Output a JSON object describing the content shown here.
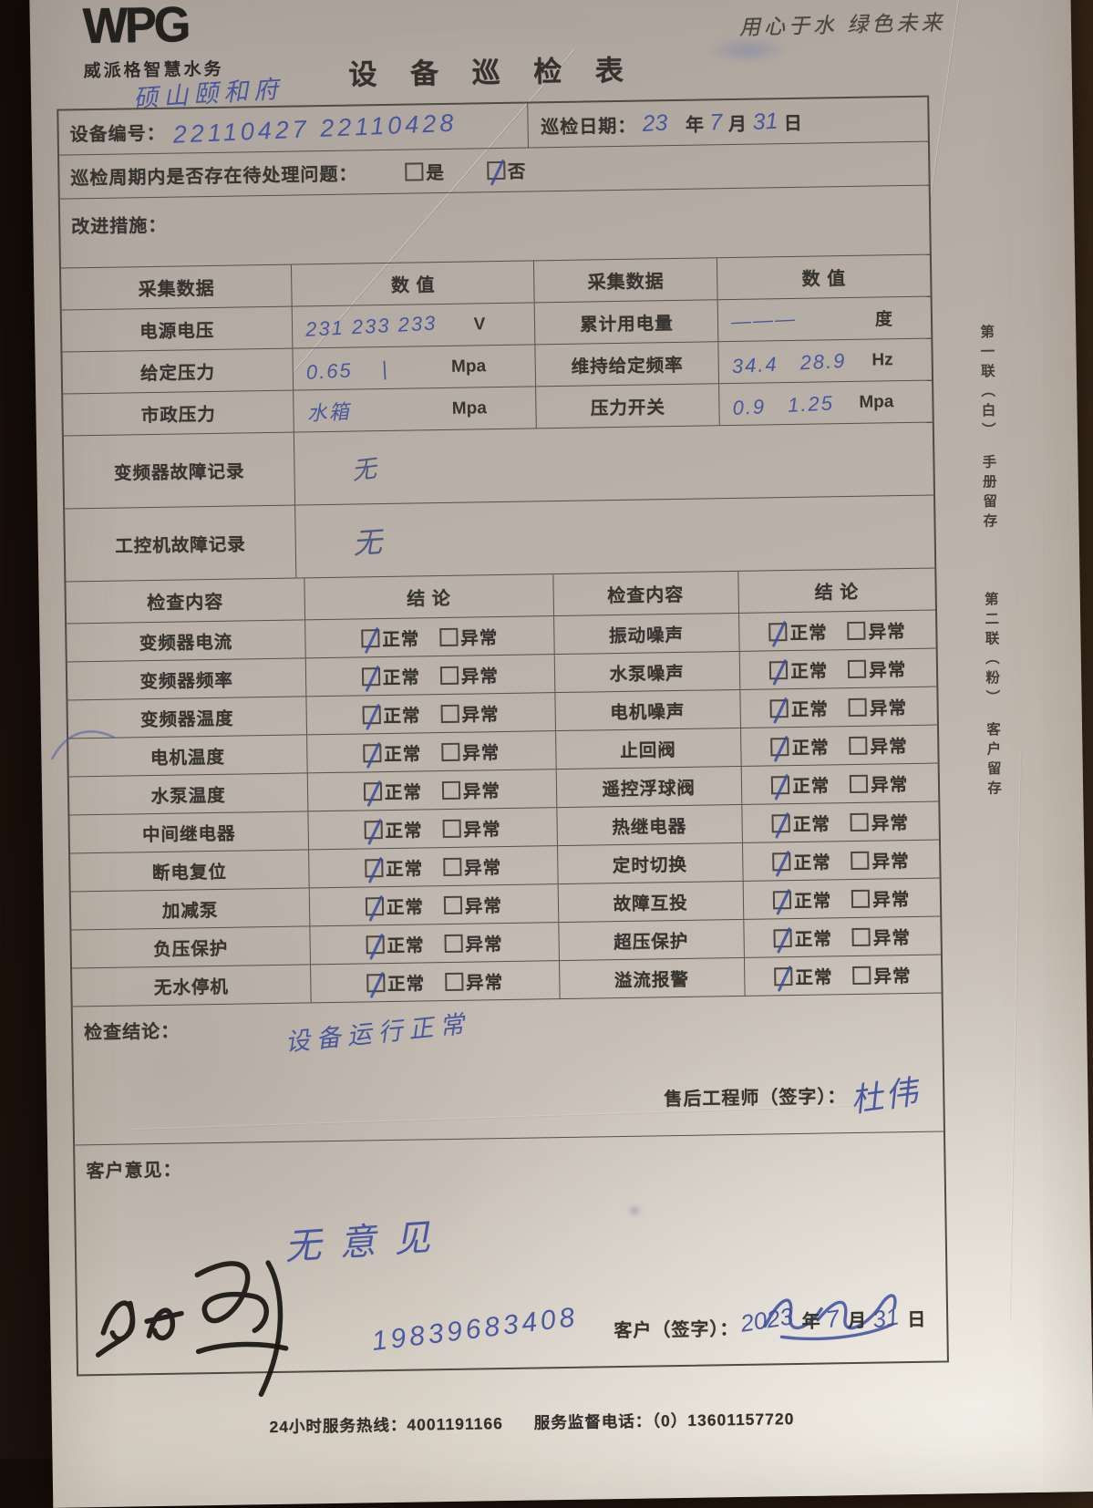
{
  "brand": {
    "logo_text": "WPG",
    "company_name": "威派格智慧水务",
    "slogan": "用心于水 绿色未来",
    "site_note_handwritten": "硕山颐和府"
  },
  "title": "设 备 巡 检 表",
  "header": {
    "device_no_label": "设备编号：",
    "device_no_value": "22110427  22110428",
    "inspect_date_label": "巡检日期：",
    "inspect_year_value": "23",
    "inspect_year_unit": "年",
    "inspect_month_value": "7",
    "inspect_month_unit": "月",
    "inspect_day_value": "31",
    "inspect_day_unit": "日"
  },
  "pending": {
    "question_label": "巡检周期内是否存在待处理问题：",
    "yes_label": "是",
    "no_label": "否"
  },
  "improve_label": "改进措施：",
  "collect": {
    "col_headers": [
      "采集数据",
      "数  值",
      "采集数据",
      "数  值"
    ],
    "rows": [
      {
        "label1": "电源电压",
        "value1": "231 233 233",
        "unit1": "V",
        "label2": "累计用电量",
        "value2": "———",
        "unit2": "度"
      },
      {
        "label1": "给定压力",
        "value1": "0.65　 |",
        "unit1": "Mpa",
        "label2": "维持给定频率",
        "value2": "34.4　28.9",
        "unit2": "Hz"
      },
      {
        "label1": "市政压力",
        "value1": "水箱",
        "unit1": "Mpa",
        "label2": "压力开关",
        "value2": "0.9　1.25",
        "unit2": "Mpa"
      }
    ],
    "faults": [
      {
        "label": "变频器故障记录",
        "value": "无"
      },
      {
        "label": "工控机故障记录",
        "value": "无"
      }
    ]
  },
  "check": {
    "col_headers": [
      "检查内容",
      "结  论",
      "检查内容",
      "结  论"
    ],
    "normal": "正常",
    "abnormal": "异常",
    "rows": [
      {
        "left": "变频器电流",
        "right": "振动噪声"
      },
      {
        "left": "变频器频率",
        "right": "水泵噪声"
      },
      {
        "left": "变频器温度",
        "right": "电机噪声"
      },
      {
        "left": "电机温度",
        "right": "止回阀"
      },
      {
        "left": "水泵温度",
        "right": "遥控浮球阀"
      },
      {
        "left": "中间继电器",
        "right": "热继电器"
      },
      {
        "left": "断电复位",
        "right": "定时切换"
      },
      {
        "left": "加减泵",
        "right": "故障互投"
      },
      {
        "left": "负压保护",
        "right": "超压保护"
      },
      {
        "left": "无水停机",
        "right": "溢流报警"
      }
    ]
  },
  "conclusion": {
    "label": "检查结论：",
    "value_handwritten": "设备运行正常",
    "engineer_label": "售后工程师（签字）：",
    "engineer_signature": "杜伟"
  },
  "customer": {
    "label": "客户意见：",
    "value_handwritten": "无意见",
    "sign_label": "客户（签字）：",
    "phone_handwritten": "19839683408",
    "date_year_value": "2023",
    "date_year_unit": "年",
    "date_month_value": "7",
    "date_month_unit": "月",
    "date_day_value": "31",
    "date_day_unit": "日"
  },
  "side_note": "第一联（白）　手册留存　　　第二联（粉）　客户留存",
  "footer": {
    "hotline_label": "24小时服务热线：",
    "hotline_number": "4001191166",
    "supervise_label": "服务监督电话：",
    "supervise_number": "（0）13601157720"
  },
  "colors": {
    "pen_blue": "#3d4e9d",
    "ink_black": "#33302c",
    "paper": "#c0b7ae",
    "backdrop": "#241811"
  }
}
